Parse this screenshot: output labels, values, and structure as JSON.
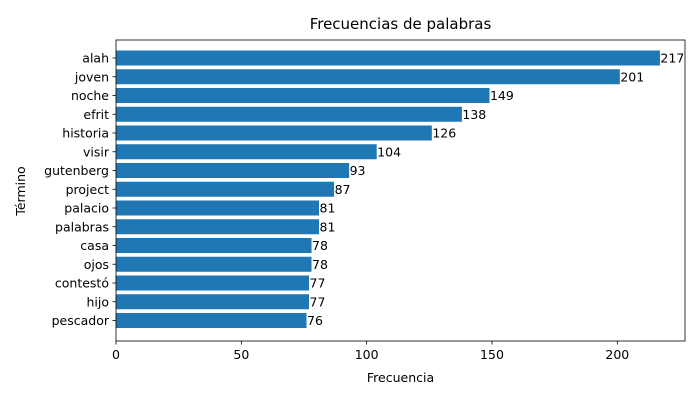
{
  "chart_data": {
    "type": "bar",
    "orientation": "horizontal",
    "title": "Frecuencias de palabras",
    "xlabel": "Frecuencia",
    "ylabel": "Término",
    "categories": [
      "alah",
      "joven",
      "noche",
      "efrit",
      "historia",
      "visir",
      "gutenberg",
      "project",
      "palacio",
      "palabras",
      "casa",
      "ojos",
      "contestó",
      "hijo",
      "pescador"
    ],
    "values": [
      217,
      201,
      149,
      138,
      126,
      104,
      93,
      87,
      81,
      81,
      78,
      78,
      77,
      77,
      76
    ],
    "xlim": [
      0,
      227
    ],
    "xticks": [
      0,
      50,
      100,
      150,
      200
    ],
    "grid": false,
    "bar_color": "#1f77b4"
  }
}
